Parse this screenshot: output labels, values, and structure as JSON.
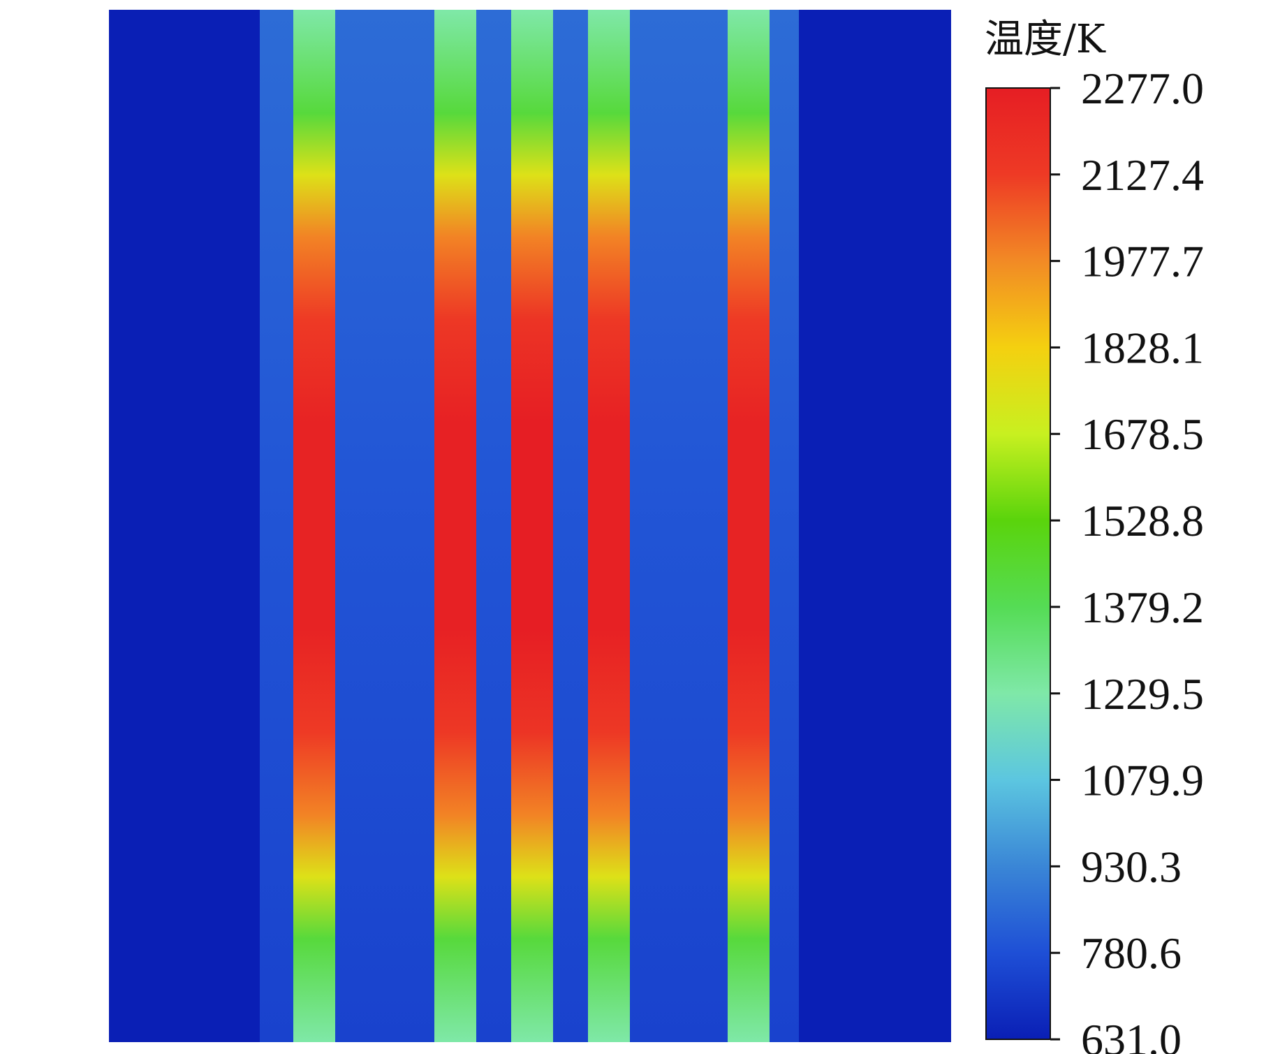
{
  "chart_data": {
    "type": "heatmap",
    "title": "",
    "xlabel": "",
    "ylabel": "",
    "colorbar": {
      "title": "温度/K",
      "min": 631.0,
      "max": 2277.0,
      "tick_labels": [
        "2277.0",
        "2127.4",
        "1977.7",
        "1828.1",
        "1678.5",
        "1528.8",
        "1379.2",
        "1229.5",
        "1079.9",
        "930.3",
        "780.6",
        "631.0"
      ],
      "tick_values": [
        2277.0,
        2127.4,
        1977.7,
        1828.1,
        1678.5,
        1528.8,
        1379.2,
        1229.5,
        1079.9,
        930.3,
        780.6,
        631.0
      ],
      "colormap": [
        "#0a1fb5",
        "#1e4fd6",
        "#3a86d6",
        "#5cc6e0",
        "#7fe8a8",
        "#55dc55",
        "#5ad40c",
        "#c8f020",
        "#f4d010",
        "#f28a25",
        "#ee3a25",
        "#e61e24"
      ]
    },
    "field": {
      "background_temperature": 631.0,
      "core_temperature": 780.6,
      "channels": [
        {
          "name": "",
          "peak_temperature": 2250,
          "end_temperature": 1229.5
        },
        {
          "name": "",
          "peak_temperature": 2260,
          "end_temperature": 1229.5
        },
        {
          "name": "",
          "peak_temperature": 2277,
          "end_temperature": 1229.5
        },
        {
          "name": "",
          "peak_temperature": 2260,
          "end_temperature": 1229.5
        },
        {
          "name": "",
          "peak_temperature": 2250,
          "end_temperature": 1229.5
        }
      ]
    },
    "grid": false,
    "legend": "right"
  }
}
